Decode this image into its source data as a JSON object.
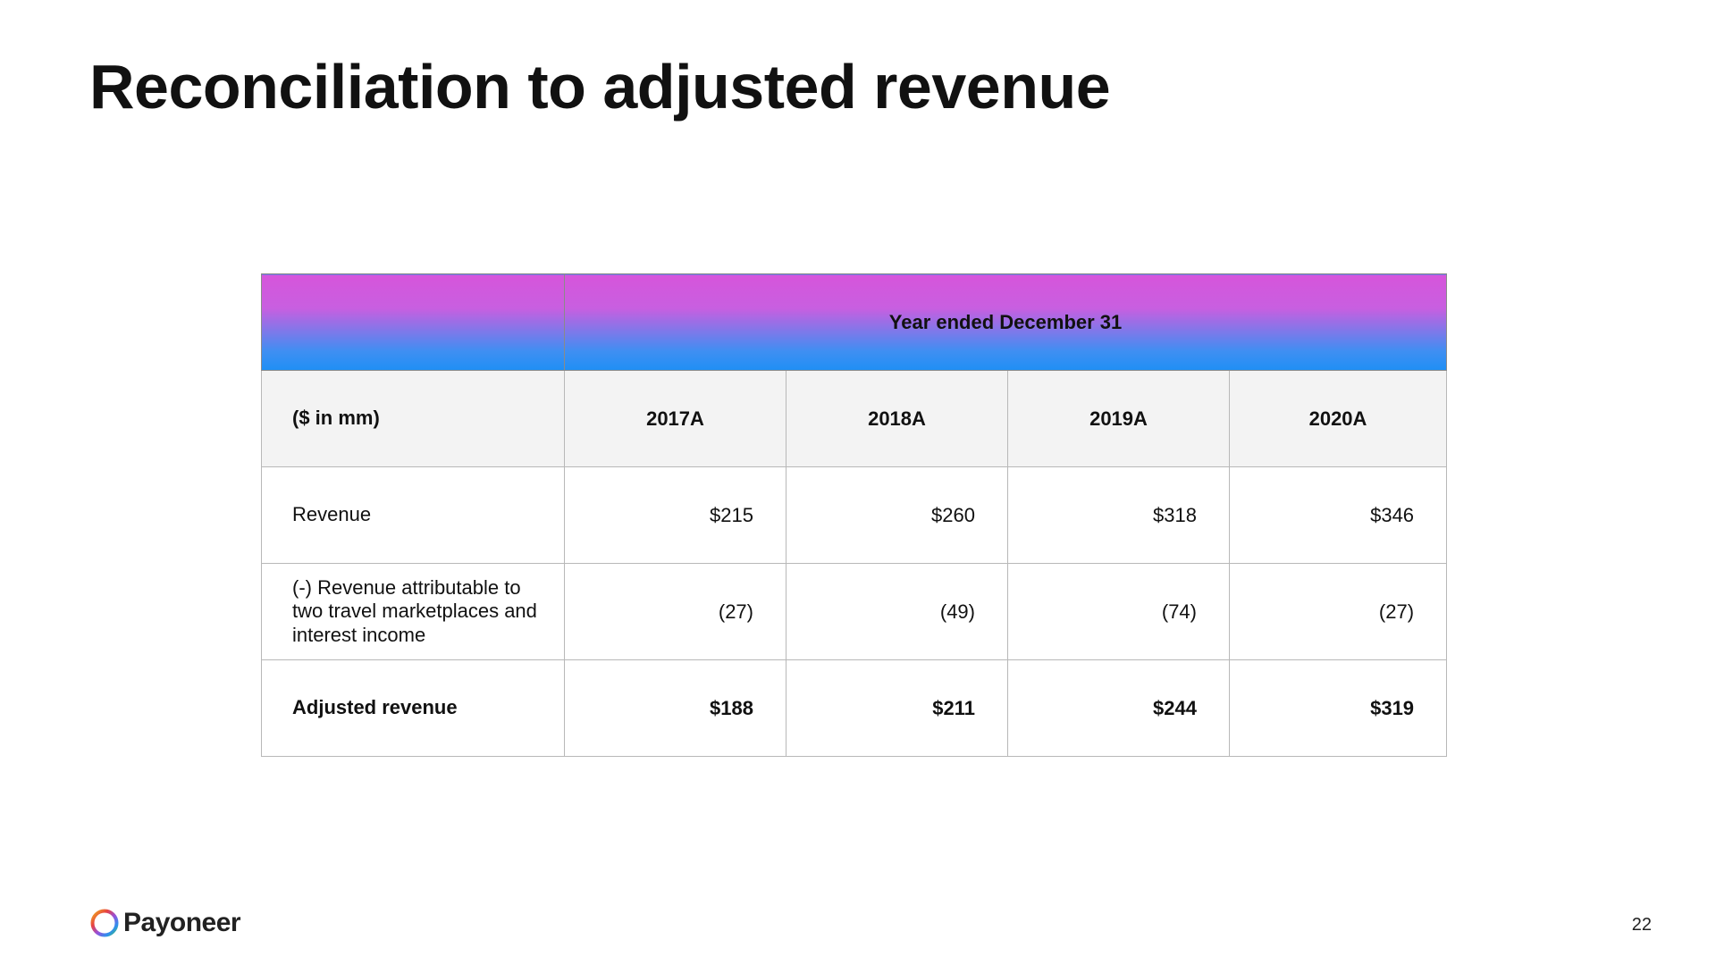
{
  "slide": {
    "title": "Reconciliation to adjusted revenue",
    "page_number": "22"
  },
  "table": {
    "group_header": "Year ended December 31",
    "unit_label": "($ in mm)",
    "years": [
      "2017A",
      "2018A",
      "2019A",
      "2020A"
    ],
    "rows": [
      {
        "label": "Revenue",
        "values": [
          "$215",
          "$260",
          "$318",
          "$346"
        ],
        "bold": false
      },
      {
        "label": "(-) Revenue attributable to two travel marketplaces and interest income",
        "values": [
          "(27)",
          "(49)",
          "(74)",
          "(27)"
        ],
        "bold": false
      },
      {
        "label": "Adjusted revenue",
        "values": [
          "$188",
          "$211",
          "$244",
          "$319"
        ],
        "bold": true
      }
    ],
    "header_gradient_colors": [
      "#d655db",
      "#1f8ff5"
    ]
  },
  "footer": {
    "logo_text": "Payoneer",
    "logo_icon": "payoneer-ring-icon",
    "logo_colors": [
      "#f0b41c",
      "#e8423f",
      "#9a4fd8",
      "#2f8ff0",
      "#35c16a"
    ]
  }
}
